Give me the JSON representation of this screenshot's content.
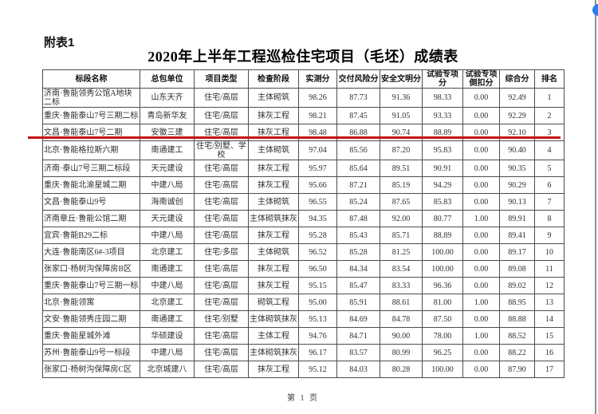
{
  "page": {
    "annex_label": "附表1",
    "title": "2020年上半年工程巡检住宅项目（毛坯）成绩表",
    "footer": "第 1 页"
  },
  "table": {
    "columns": [
      "标段名称",
      "总包单位",
      "项目类型",
      "检查阶段",
      "实测分",
      "交付风险分",
      "安全文明分",
      "试验专项分",
      "试验专项倒扣分",
      "综合分",
      "排名"
    ],
    "rows": [
      [
        "济南·鲁能领秀公馆A地块二标",
        "山东天齐",
        "住宅/高层",
        "主体砌筑",
        "98.26",
        "87.73",
        "91.36",
        "98.33",
        "0.00",
        "92.49",
        "1"
      ],
      [
        "重庆·鲁能泰山7号三期二标",
        "青岛新华友",
        "住宅/高层",
        "抹灰工程",
        "98.21",
        "87.45",
        "91.05",
        "93.33",
        "0.00",
        "92.29",
        "2"
      ],
      [
        "文昌·鲁能泰山7号二期",
        "安徽三建",
        "住宅/高层",
        "抹灰工程",
        "98.48",
        "86.88",
        "90.74",
        "88.89",
        "0.00",
        "92.10",
        "3"
      ],
      [
        "北京·鲁能格拉斯六期",
        "南通建工",
        "住宅/别墅、学校",
        "主体砌筑",
        "97.04",
        "85.56",
        "87.20",
        "95.83",
        "0.00",
        "90.40",
        "4"
      ],
      [
        "济南·泰山7号三期二标段",
        "天元建设",
        "住宅/高层",
        "抹灰工程",
        "95.97",
        "85.64",
        "89.51",
        "90.91",
        "0.00",
        "90.35",
        "5"
      ],
      [
        "重庆·鲁能北渝星城二期",
        "中建八局",
        "住宅/高层",
        "抹灰工程",
        "95.66",
        "87.21",
        "85.19",
        "94.29",
        "0.00",
        "90.29",
        "6"
      ],
      [
        "文昌·鲁能泰山9号",
        "海南诚创",
        "住宅/高层",
        "主体砌筑",
        "96.55",
        "85.24",
        "87.65",
        "85.83",
        "0.00",
        "90.13",
        "7"
      ],
      [
        "济南章丘·鲁能公馆二期",
        "天元建设",
        "住宅/高层",
        "主体砌筑抹灰",
        "94.35",
        "87.48",
        "92.00",
        "80.77",
        "1.00",
        "89.91",
        "8"
      ],
      [
        "宜宾·鲁能B29二标",
        "中建八局",
        "住宅/高层",
        "抹灰工程",
        "95.28",
        "85.43",
        "85.71",
        "88.89",
        "0.00",
        "89.41",
        "9"
      ],
      [
        "大连·鲁能南区6#-3项目",
        "北京建工",
        "住宅/多层",
        "主体砌筑",
        "96.52",
        "85.28",
        "81.25",
        "100.00",
        "0.00",
        "89.17",
        "10"
      ],
      [
        "张家口·杨树沟保障房B区",
        "南通建工",
        "住宅/高层",
        "抹灰工程",
        "96.50",
        "84.34",
        "83.54",
        "100.00",
        "0.00",
        "89.08",
        "11"
      ],
      [
        "重庆·鲁能泰山7号三期一标",
        "中建八局",
        "住宅/高层",
        "抹灰工程",
        "95.15",
        "85.47",
        "83.33",
        "96.36",
        "0.00",
        "89.02",
        "12"
      ],
      [
        "北京·鲁能领寓",
        "北京建工",
        "住宅/高层",
        "砌筑工程",
        "95.00",
        "85.91",
        "88.61",
        "81.00",
        "1.00",
        "88.95",
        "13"
      ],
      [
        "文安·鲁能领秀庄园二期",
        "南通建工",
        "住宅/别墅",
        "主体砌筑抹灰",
        "95.13",
        "84.69",
        "84.78",
        "87.50",
        "0.00",
        "88.88",
        "14"
      ],
      [
        "重庆·鲁能星城外滩",
        "华硕建设",
        "住宅/高层",
        "主体工程",
        "94.76",
        "84.71",
        "90.00",
        "78.00",
        "1.00",
        "88.52",
        "15"
      ],
      [
        "苏州·鲁能泰山9号一标段",
        "中建八局",
        "住宅/高层",
        "主体砌筑抹灰",
        "96.17",
        "83.57",
        "80.99",
        "96.25",
        "0.00",
        "88.22",
        "16"
      ],
      [
        "张家口·杨树沟保障房C区",
        "北京城建八",
        "住宅/高层",
        "抹灰工程",
        "95.12",
        "84.03",
        "80.28",
        "100.00",
        "0.00",
        "87.90",
        "17"
      ]
    ],
    "tall_row_indexes": [
      0,
      3
    ],
    "highlight_underline_after_row": 3
  },
  "colors": {
    "highlight_red": "#c41111",
    "scroll_accent_blue": "#2b7de9",
    "table_border": "#4d4d4d"
  }
}
